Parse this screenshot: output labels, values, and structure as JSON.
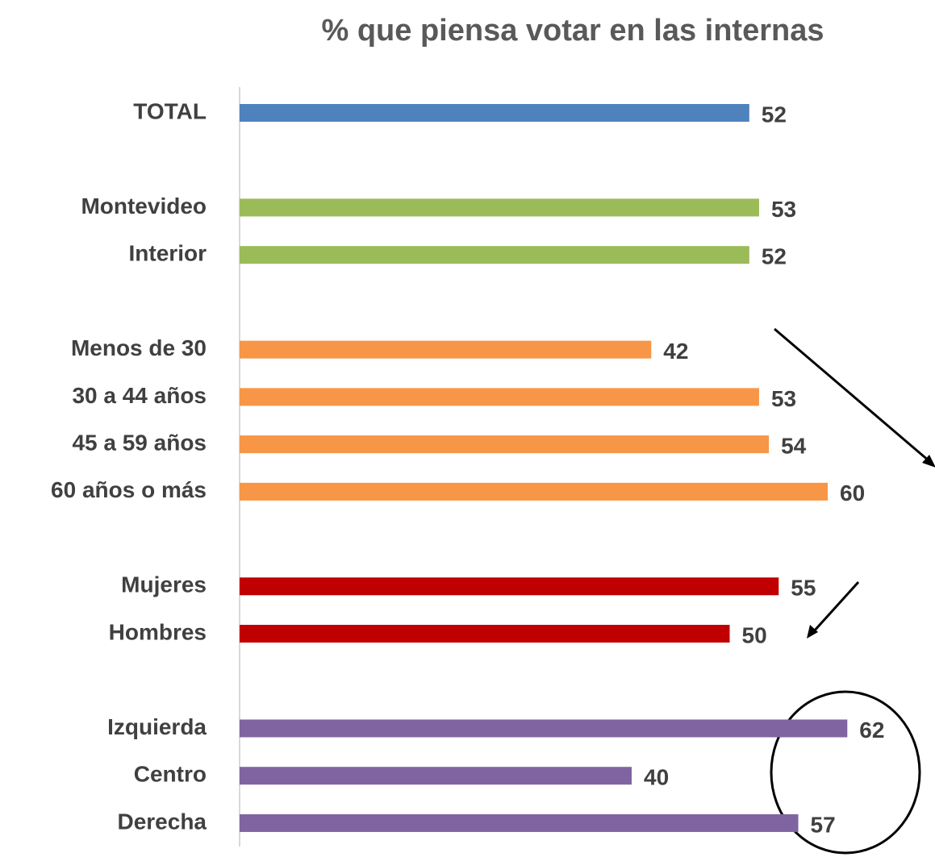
{
  "chart_data": {
    "type": "bar",
    "orientation": "horizontal",
    "title": "% que piensa votar en las internas",
    "categories": [
      "TOTAL",
      null,
      "Montevideo",
      "Interior",
      null,
      "Menos de 30",
      "30 a 44 años",
      "45 a 59 años",
      "60 años o más",
      null,
      "Mujeres",
      "Hombres",
      null,
      "Izquierda",
      "Centro",
      "Derecha"
    ],
    "values": [
      52,
      null,
      53,
      52,
      null,
      42,
      53,
      54,
      60,
      null,
      55,
      50,
      null,
      62,
      40,
      57
    ],
    "colors": [
      "#4f81bd",
      null,
      "#9bbb59",
      "#9bbb59",
      null,
      "#f79646",
      "#f79646",
      "#f79646",
      "#f79646",
      null,
      "#c00000",
      "#c00000",
      null,
      "#8064a2",
      "#8064a2",
      "#8064a2"
    ]
  }
}
